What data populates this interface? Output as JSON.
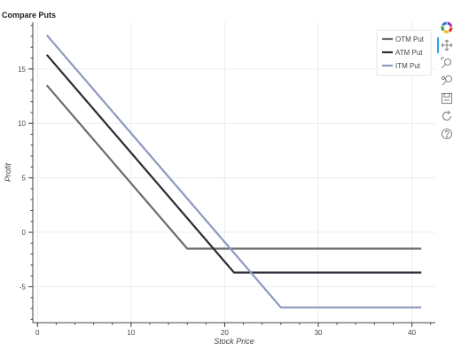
{
  "chart_data": {
    "type": "line",
    "title": "Compare Puts",
    "xlabel": "Stock Price",
    "ylabel": "Profit",
    "xlim": [
      -0.5,
      42.5
    ],
    "ylim": [
      -8.3,
      19.3
    ],
    "x_ticks": [
      0,
      10,
      20,
      30,
      40
    ],
    "y_ticks": [
      -5,
      0,
      5,
      10,
      15
    ],
    "grid": true,
    "legend_position": "top-right",
    "series": [
      {
        "name": "OTM Put",
        "color": "#6b6b6b",
        "x": [
          1,
          16,
          41
        ],
        "y": [
          13.5,
          -1.5,
          -1.5
        ]
      },
      {
        "name": "ATM Put",
        "color": "#2a2a35",
        "x": [
          1,
          21,
          41
        ],
        "y": [
          16.3,
          -3.7,
          -3.7
        ]
      },
      {
        "name": "ITM Put",
        "color": "#8e98be",
        "x": [
          1,
          26,
          41
        ],
        "y": [
          18.1,
          -6.9,
          -6.9
        ]
      }
    ]
  },
  "toolbar": [
    {
      "name": "bokeh-logo-icon",
      "label": "Bokeh"
    },
    {
      "name": "pan-icon",
      "label": "Pan"
    },
    {
      "name": "box-zoom-icon",
      "label": "Box Zoom"
    },
    {
      "name": "wheel-zoom-icon",
      "label": "Wheel Zoom"
    },
    {
      "name": "save-icon",
      "label": "Save"
    },
    {
      "name": "reset-icon",
      "label": "Reset"
    },
    {
      "name": "help-icon",
      "label": "Help"
    }
  ]
}
